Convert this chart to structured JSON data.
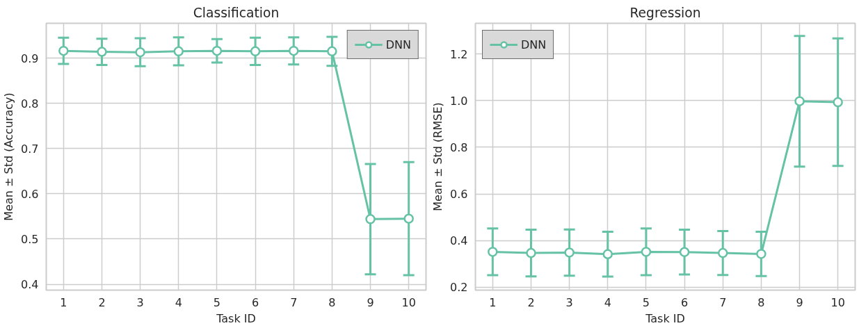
{
  "chart_data": [
    {
      "type": "line",
      "title": "Classification",
      "xlabel": "Task ID",
      "ylabel": "Mean ± Std (Accuracy)",
      "x": [
        1,
        2,
        3,
        4,
        5,
        6,
        7,
        8,
        9,
        10
      ],
      "xlim": [
        0.55,
        10.45
      ],
      "xticks": [
        1,
        2,
        3,
        4,
        5,
        6,
        7,
        8,
        9,
        10
      ],
      "ylim": [
        0.387,
        0.977
      ],
      "yticks": [
        0.4,
        0.5,
        0.6,
        0.7,
        0.8,
        0.9
      ],
      "series": [
        {
          "name": "DNN",
          "color": "#66c2a5",
          "values": [
            0.916,
            0.914,
            0.913,
            0.915,
            0.916,
            0.915,
            0.916,
            0.915,
            0.544,
            0.545
          ],
          "errors": [
            0.029,
            0.029,
            0.031,
            0.031,
            0.026,
            0.03,
            0.03,
            0.032,
            0.122,
            0.125
          ]
        }
      ],
      "grid": true,
      "legend": "top right",
      "marker": "circle",
      "line_style": "solid"
    },
    {
      "type": "line",
      "title": "Regression",
      "xlabel": "Task ID",
      "ylabel": "Mean ± Std (RMSE)",
      "x": [
        1,
        2,
        3,
        4,
        5,
        6,
        7,
        8,
        9,
        10
      ],
      "xlim": [
        0.55,
        10.45
      ],
      "xticks": [
        1,
        2,
        3,
        4,
        5,
        6,
        7,
        8,
        9,
        10
      ],
      "ylim": [
        0.188,
        1.331
      ],
      "yticks": [
        0.2,
        0.4,
        0.6,
        0.8,
        {
          "value": 1.0,
          "label": "1.0"
        },
        1.2
      ],
      "series": [
        {
          "name": "DNN",
          "color": "#66c2a5",
          "values": [
            0.352,
            0.347,
            0.349,
            0.342,
            0.352,
            0.351,
            0.347,
            0.343,
            0.997,
            0.993
          ],
          "errors": [
            0.1,
            0.1,
            0.099,
            0.096,
            0.1,
            0.096,
            0.094,
            0.095,
            0.28,
            0.273
          ]
        }
      ],
      "grid": true,
      "legend": "top left",
      "marker": "circle",
      "line_style": "solid"
    }
  ]
}
